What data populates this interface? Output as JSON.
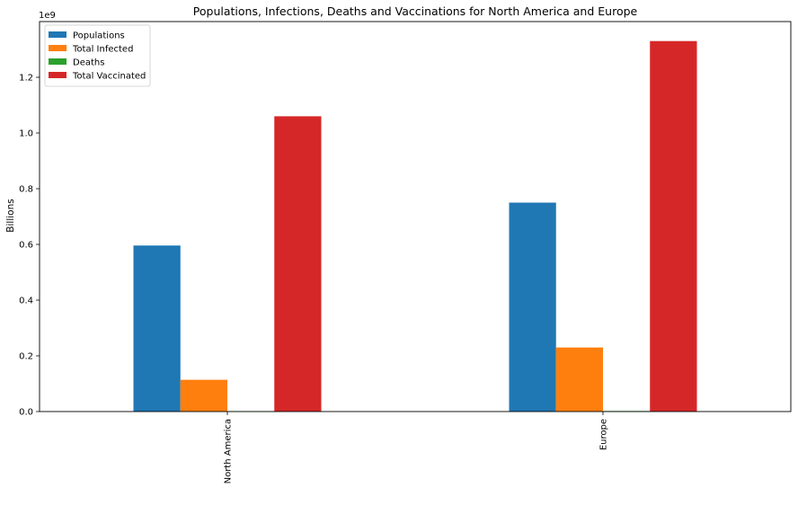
{
  "chart_data": {
    "type": "bar",
    "title": "Populations, Infections, Deaths and Vaccinations for North America and Europe",
    "ylabel": "Billions",
    "xlabel": "",
    "offset_label": "1e9",
    "categories": [
      "North America",
      "Europe"
    ],
    "series": [
      {
        "name": "Populations",
        "color": "#1f77b4",
        "values": [
          596000000,
          750000000
        ]
      },
      {
        "name": "Total Infected",
        "color": "#ff7f0e",
        "values": [
          114000000,
          230000000
        ]
      },
      {
        "name": "Deaths",
        "color": "#2ca02c",
        "values": [
          1500000,
          2000000
        ]
      },
      {
        "name": "Total Vaccinated",
        "color": "#d62728",
        "values": [
          1060000000,
          1330000000
        ]
      }
    ],
    "yticks": [
      0.0,
      0.2,
      0.4,
      0.6,
      0.8,
      1.0,
      1.2
    ],
    "ytick_labels": [
      "0.0",
      "0.2",
      "0.4",
      "0.6",
      "0.8",
      "1.0",
      "1.2"
    ],
    "ylim": [
      0,
      1400000000
    ],
    "legend_position": "top-left",
    "grid": false
  }
}
